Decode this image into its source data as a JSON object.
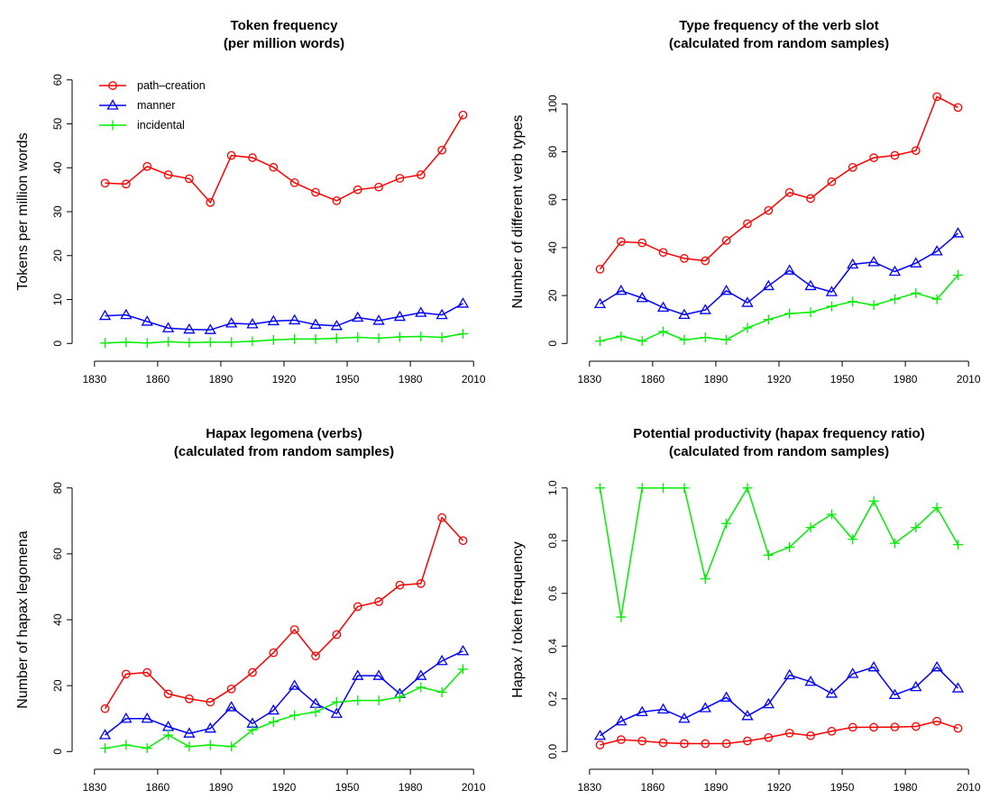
{
  "chart_data": [
    {
      "type": "line",
      "title": "Token frequency",
      "subtitle": "(per million words)",
      "ylabel": "Tokens per million words",
      "x": [
        1835,
        1845,
        1855,
        1865,
        1875,
        1885,
        1895,
        1905,
        1915,
        1925,
        1935,
        1945,
        1955,
        1965,
        1975,
        1985,
        1995,
        2005
      ],
      "xlim": [
        1822.8,
        2017.2
      ],
      "xticks": [
        1830,
        1860,
        1890,
        1920,
        1950,
        1980,
        2010
      ],
      "ylim": [
        -2.4,
        62.4
      ],
      "yticks": [
        0,
        10,
        20,
        30,
        40,
        50,
        60
      ],
      "legend": "topleft",
      "series": [
        {
          "name": "path–creation",
          "color": "#ff0000",
          "marker": "circle",
          "values": [
            36.5,
            36.3,
            40.3,
            38.4,
            37.5,
            32.1,
            42.8,
            42.3,
            40.1,
            36.6,
            34.4,
            32.5,
            35.0,
            35.6,
            37.6,
            38.4,
            44.0,
            52.0
          ]
        },
        {
          "name": "manner",
          "color": "#0000ff",
          "marker": "triangle",
          "values": [
            6.3,
            6.5,
            5.0,
            3.5,
            3.2,
            3.1,
            4.6,
            4.4,
            5.1,
            5.3,
            4.3,
            4.0,
            5.9,
            5.2,
            6.1,
            7.0,
            6.5,
            9.1
          ]
        },
        {
          "name": "incidental",
          "color": "#00ee00",
          "marker": "plus",
          "values": [
            0.1,
            0.3,
            0.1,
            0.4,
            0.2,
            0.3,
            0.3,
            0.5,
            0.8,
            1.0,
            1.0,
            1.2,
            1.4,
            1.2,
            1.5,
            1.6,
            1.4,
            2.2
          ]
        }
      ]
    },
    {
      "type": "line",
      "title": "Type frequency of the verb slot",
      "subtitle": "(calculated from random samples)",
      "ylabel": "Number of different verb types",
      "x": [
        1835,
        1845,
        1855,
        1865,
        1875,
        1885,
        1895,
        1905,
        1915,
        1925,
        1935,
        1945,
        1955,
        1965,
        1975,
        1985,
        1995,
        2005
      ],
      "xlim": [
        1822.8,
        2017.2
      ],
      "xticks": [
        1830,
        1860,
        1890,
        1920,
        1950,
        1980,
        2010
      ],
      "ylim": [
        -4.4,
        114.4
      ],
      "yticks": [
        0,
        20,
        40,
        60,
        80,
        100
      ],
      "series": [
        {
          "color": "#ff0000",
          "marker": "circle",
          "values": [
            31,
            42.5,
            42,
            38,
            35.5,
            34.5,
            43,
            50,
            55.5,
            63,
            60.5,
            67.5,
            73.5,
            77.5,
            78.5,
            80.5,
            103,
            98.5
          ]
        },
        {
          "color": "#0000ff",
          "marker": "triangle",
          "values": [
            16.5,
            22,
            19,
            15,
            12,
            14,
            22,
            17,
            24,
            30.5,
            24,
            21.5,
            33,
            34,
            30,
            33.5,
            38.5,
            46
          ]
        },
        {
          "color": "#00ee00",
          "marker": "plus",
          "values": [
            1,
            3,
            1,
            5,
            1.5,
            2.5,
            1.5,
            6.5,
            10,
            12.5,
            13,
            15.5,
            17.5,
            16,
            18.5,
            21,
            18.5,
            28.5
          ]
        }
      ]
    },
    {
      "type": "line",
      "title": "Hapax legomena (verbs)",
      "subtitle": "(calculated from random samples)",
      "ylabel": "Number of hapax legomena",
      "x": [
        1835,
        1845,
        1855,
        1865,
        1875,
        1885,
        1895,
        1905,
        1915,
        1925,
        1935,
        1945,
        1955,
        1965,
        1975,
        1985,
        1995,
        2005
      ],
      "xlim": [
        1822.8,
        2017.2
      ],
      "xticks": [
        1830,
        1860,
        1890,
        1920,
        1950,
        1980,
        2010
      ],
      "ylim": [
        -3.2,
        83.2
      ],
      "yticks": [
        0,
        20,
        40,
        60,
        80
      ],
      "series": [
        {
          "color": "#ff0000",
          "marker": "circle",
          "values": [
            13,
            23.5,
            24,
            17.5,
            16,
            15,
            19,
            24,
            30,
            37,
            29,
            35.5,
            44,
            45.5,
            50.5,
            51,
            71,
            64
          ]
        },
        {
          "color": "#0000ff",
          "marker": "triangle",
          "values": [
            5,
            10,
            10,
            7.5,
            5.5,
            7,
            13.5,
            8.5,
            12.5,
            20,
            14.5,
            11.5,
            23,
            23,
            17.5,
            23,
            27.5,
            30.5
          ]
        },
        {
          "color": "#00ee00",
          "marker": "plus",
          "values": [
            1,
            2,
            1,
            5,
            1.5,
            2,
            1.5,
            6.5,
            9,
            11,
            12,
            15,
            15.5,
            15.5,
            16.5,
            19.5,
            18,
            25
          ]
        }
      ]
    },
    {
      "type": "line",
      "title": "Potential productivity (hapax frequency ratio)",
      "subtitle": "(calculated from random samples)",
      "ylabel": "Hapax / token frequency",
      "x": [
        1835,
        1845,
        1855,
        1865,
        1875,
        1885,
        1895,
        1905,
        1915,
        1925,
        1935,
        1945,
        1955,
        1965,
        1975,
        1985,
        1995,
        2005
      ],
      "xlim": [
        1822.8,
        2017.2
      ],
      "xticks": [
        1830,
        1860,
        1890,
        1920,
        1950,
        1980,
        2010
      ],
      "ylim": [
        -0.04,
        1.04
      ],
      "yticks": [
        {
          "value": 0,
          "label": "0.0"
        },
        0.2,
        0.4,
        0.6,
        0.8,
        {
          "value": 1,
          "label": "1.0"
        }
      ],
      "series": [
        {
          "color": "#ff0000",
          "marker": "circle",
          "values": [
            0.025,
            0.045,
            0.04,
            0.033,
            0.03,
            0.03,
            0.03,
            0.04,
            0.053,
            0.07,
            0.06,
            0.077,
            0.092,
            0.092,
            0.093,
            0.095,
            0.115,
            0.088
          ]
        },
        {
          "color": "#0000ff",
          "marker": "triangle",
          "values": [
            0.06,
            0.115,
            0.15,
            0.16,
            0.125,
            0.165,
            0.205,
            0.135,
            0.18,
            0.29,
            0.265,
            0.22,
            0.295,
            0.32,
            0.215,
            0.245,
            0.32,
            0.24
          ]
        },
        {
          "color": "#00ee00",
          "marker": "plus",
          "values": [
            1.0,
            0.51,
            1.0,
            1.0,
            1.0,
            0.655,
            0.865,
            1.0,
            0.745,
            0.775,
            0.85,
            0.9,
            0.805,
            0.95,
            0.79,
            0.85,
            0.925,
            0.785
          ]
        }
      ]
    }
  ]
}
